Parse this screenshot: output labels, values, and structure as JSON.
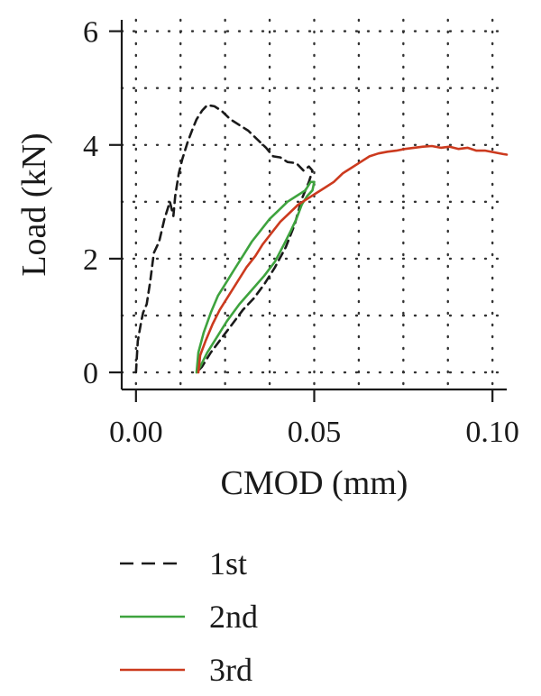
{
  "chart_data": {
    "type": "line",
    "title": "",
    "xlabel": "CMOD (mm)",
    "ylabel": "Load (kN)",
    "xlim": [
      -0.004,
      0.104
    ],
    "ylim": [
      -0.3,
      6.2
    ],
    "xticks": [
      0.0,
      0.05,
      0.1
    ],
    "xtick_labels": [
      "0.00",
      "0.05",
      "0.10"
    ],
    "yticks": [
      0,
      2,
      4,
      6
    ],
    "ytick_labels": [
      "0",
      "2",
      "4",
      "6"
    ],
    "grid_x": [
      0.0,
      0.0125,
      0.025,
      0.0375,
      0.05,
      0.0625,
      0.075,
      0.0875,
      0.1
    ],
    "grid_y": [
      0,
      1,
      2,
      3,
      4,
      5,
      6
    ],
    "grid": true,
    "legend_position": "bottom",
    "series": [
      {
        "name": "1st",
        "color": "#1a1a1a",
        "dash": "dashed",
        "points": [
          [
            0.0,
            0.0
          ],
          [
            0.0005,
            0.55
          ],
          [
            0.0015,
            0.9
          ],
          [
            0.002,
            1.05
          ],
          [
            0.003,
            1.2
          ],
          [
            0.004,
            1.6
          ],
          [
            0.005,
            2.1
          ],
          [
            0.0065,
            2.3
          ],
          [
            0.008,
            2.7
          ],
          [
            0.0095,
            3.0
          ],
          [
            0.0105,
            2.75
          ],
          [
            0.011,
            3.1
          ],
          [
            0.012,
            3.5
          ],
          [
            0.013,
            3.75
          ],
          [
            0.0145,
            4.05
          ],
          [
            0.016,
            4.3
          ],
          [
            0.017,
            4.45
          ],
          [
            0.0185,
            4.6
          ],
          [
            0.02,
            4.7
          ],
          [
            0.022,
            4.68
          ],
          [
            0.024,
            4.6
          ],
          [
            0.0265,
            4.45
          ],
          [
            0.029,
            4.35
          ],
          [
            0.0315,
            4.25
          ],
          [
            0.034,
            4.1
          ],
          [
            0.0365,
            3.95
          ],
          [
            0.0385,
            3.8
          ],
          [
            0.0405,
            3.78
          ],
          [
            0.0425,
            3.7
          ],
          [
            0.045,
            3.68
          ],
          [
            0.047,
            3.55
          ],
          [
            0.0485,
            3.62
          ],
          [
            0.0495,
            3.55
          ],
          [
            0.0485,
            3.35
          ],
          [
            0.0465,
            3.05
          ],
          [
            0.0445,
            2.6
          ],
          [
            0.042,
            2.2
          ],
          [
            0.039,
            1.85
          ],
          [
            0.036,
            1.55
          ],
          [
            0.033,
            1.3
          ],
          [
            0.03,
            1.1
          ],
          [
            0.027,
            0.85
          ],
          [
            0.024,
            0.6
          ],
          [
            0.021,
            0.35
          ],
          [
            0.0185,
            0.1
          ],
          [
            0.017,
            0.0
          ]
        ]
      },
      {
        "name": "2nd",
        "color": "#3ea33e",
        "dash": "solid",
        "points": [
          [
            0.017,
            0.0
          ],
          [
            0.0175,
            0.35
          ],
          [
            0.019,
            0.7
          ],
          [
            0.021,
            1.05
          ],
          [
            0.023,
            1.35
          ],
          [
            0.025,
            1.55
          ],
          [
            0.0275,
            1.8
          ],
          [
            0.03,
            2.05
          ],
          [
            0.0325,
            2.3
          ],
          [
            0.035,
            2.5
          ],
          [
            0.0375,
            2.7
          ],
          [
            0.04,
            2.85
          ],
          [
            0.0425,
            3.0
          ],
          [
            0.045,
            3.1
          ],
          [
            0.0475,
            3.2
          ],
          [
            0.049,
            3.35
          ],
          [
            0.05,
            3.35
          ],
          [
            0.0495,
            3.2
          ],
          [
            0.048,
            3.1
          ],
          [
            0.0465,
            2.95
          ],
          [
            0.045,
            2.7
          ],
          [
            0.0435,
            2.5
          ],
          [
            0.0415,
            2.25
          ],
          [
            0.039,
            1.95
          ],
          [
            0.036,
            1.7
          ],
          [
            0.0325,
            1.45
          ],
          [
            0.029,
            1.2
          ],
          [
            0.0255,
            0.9
          ],
          [
            0.0225,
            0.6
          ],
          [
            0.02,
            0.35
          ],
          [
            0.018,
            0.1
          ],
          [
            0.017,
            0.0
          ]
        ]
      },
      {
        "name": "3rd",
        "color": "#cc3a1e",
        "dash": "solid",
        "points": [
          [
            0.0175,
            0.0
          ],
          [
            0.018,
            0.3
          ],
          [
            0.0195,
            0.55
          ],
          [
            0.0215,
            0.85
          ],
          [
            0.0235,
            1.1
          ],
          [
            0.026,
            1.35
          ],
          [
            0.0285,
            1.6
          ],
          [
            0.031,
            1.85
          ],
          [
            0.0335,
            2.05
          ],
          [
            0.0355,
            2.25
          ],
          [
            0.038,
            2.45
          ],
          [
            0.0405,
            2.65
          ],
          [
            0.043,
            2.8
          ],
          [
            0.0455,
            2.95
          ],
          [
            0.048,
            3.05
          ],
          [
            0.0505,
            3.15
          ],
          [
            0.053,
            3.25
          ],
          [
            0.0555,
            3.35
          ],
          [
            0.058,
            3.5
          ],
          [
            0.0605,
            3.6
          ],
          [
            0.063,
            3.7
          ],
          [
            0.0655,
            3.8
          ],
          [
            0.068,
            3.85
          ],
          [
            0.0705,
            3.88
          ],
          [
            0.073,
            3.9
          ],
          [
            0.0755,
            3.93
          ],
          [
            0.078,
            3.95
          ],
          [
            0.0805,
            3.97
          ],
          [
            0.083,
            3.98
          ],
          [
            0.0855,
            3.95
          ],
          [
            0.088,
            3.97
          ],
          [
            0.0905,
            3.93
          ],
          [
            0.093,
            3.95
          ],
          [
            0.0955,
            3.9
          ],
          [
            0.098,
            3.9
          ],
          [
            0.1005,
            3.87
          ],
          [
            0.103,
            3.84
          ],
          [
            0.104,
            3.83
          ]
        ]
      }
    ]
  }
}
